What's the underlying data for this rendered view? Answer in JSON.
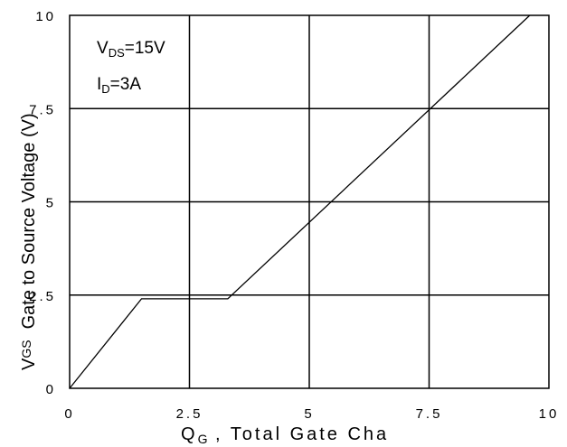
{
  "chart_data": {
    "type": "line",
    "xlabel_main": "Q",
    "xlabel_sub": "G",
    "xlabel_rest": " , Total Gate Cha",
    "ylabel_main": "V",
    "ylabel_sub": "GS",
    "ylabel_rest": "Gate to Source Voltage (V)",
    "xlim": [
      0,
      10
    ],
    "ylim": [
      0,
      10
    ],
    "x_ticks": [
      {
        "v": 0,
        "label": "0"
      },
      {
        "v": 2.5,
        "label": "2.5"
      },
      {
        "v": 5,
        "label": "5"
      },
      {
        "v": 7.5,
        "label": "7.5"
      },
      {
        "v": 10,
        "label": "10"
      }
    ],
    "y_ticks": [
      {
        "v": 0,
        "label": "0"
      },
      {
        "v": 2.5,
        "label": "2.5"
      },
      {
        "v": 5,
        "label": "5"
      },
      {
        "v": 7.5,
        "label": "7.5"
      },
      {
        "v": 10,
        "label": "10"
      }
    ],
    "grid": true,
    "annotations": [
      {
        "main": "V",
        "sub": "DS",
        "rest": "=15V"
      },
      {
        "main": "I",
        "sub": "D",
        "rest": "=3A"
      }
    ],
    "series": [
      {
        "x": [
          0,
          1.5,
          3.3,
          9.6
        ],
        "y": [
          0,
          2.4,
          2.4,
          10
        ]
      }
    ]
  }
}
